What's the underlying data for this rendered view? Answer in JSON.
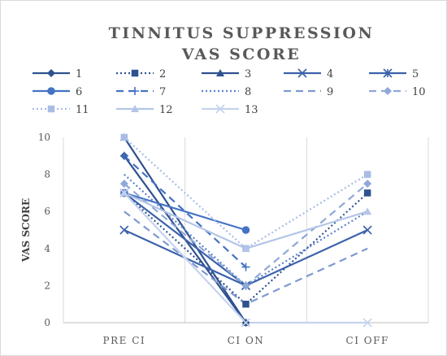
{
  "chart_data": {
    "type": "line",
    "title_line1": "TINNITUS SUPPRESSION",
    "title_line2": "VAS SCORE",
    "ylabel": "VAS SCORE",
    "xlabel": "",
    "categories": [
      "PRE CI",
      "CI ON",
      "CI OFF"
    ],
    "ylim": [
      0,
      10
    ],
    "yticks": [
      0,
      2,
      4,
      6,
      8,
      10
    ],
    "grid": "vertical category separators",
    "legend_position": "top",
    "series": [
      {
        "name": "1",
        "values": [
          9,
          0,
          null
        ],
        "color": "#2f528f",
        "dash": "none",
        "marker": "diamond"
      },
      {
        "name": "2",
        "values": [
          7,
          1,
          7
        ],
        "color": "#2f528f",
        "dash": "dot",
        "marker": "square"
      },
      {
        "name": "3",
        "values": [
          10,
          0,
          null
        ],
        "color": "#2f528f",
        "dash": "none",
        "marker": "triangle"
      },
      {
        "name": "4",
        "values": [
          5,
          2,
          5
        ],
        "color": "#3b62ab",
        "dash": "none",
        "marker": "x"
      },
      {
        "name": "5",
        "values": [
          7,
          2,
          null
        ],
        "color": "#3b62ab",
        "dash": "none",
        "marker": "star"
      },
      {
        "name": "6",
        "values": [
          7,
          5,
          null
        ],
        "color": "#4472c4",
        "dash": "none",
        "marker": "circle"
      },
      {
        "name": "7",
        "values": [
          9,
          3,
          null
        ],
        "color": "#4472c4",
        "dash": "dash",
        "marker": "plus"
      },
      {
        "name": "8",
        "values": [
          8,
          2,
          6
        ],
        "color": "#5b82cc",
        "dash": "dot",
        "marker": "none"
      },
      {
        "name": "9",
        "values": [
          6,
          1,
          4
        ],
        "color": "#7f98d0",
        "dash": "dash",
        "marker": "none"
      },
      {
        "name": "10",
        "values": [
          7.5,
          2,
          7.5
        ],
        "color": "#8fa8d8",
        "dash": "dash",
        "marker": "diamond"
      },
      {
        "name": "11",
        "values": [
          10,
          4,
          8
        ],
        "color": "#a9bde4",
        "dash": "dot",
        "marker": "square"
      },
      {
        "name": "12",
        "values": [
          7,
          4,
          6
        ],
        "color": "#b4c6e7",
        "dash": "none",
        "marker": "triangle"
      },
      {
        "name": "13",
        "values": [
          7,
          0,
          0
        ],
        "color": "#c5d3ee",
        "dash": "none",
        "marker": "x"
      }
    ]
  }
}
